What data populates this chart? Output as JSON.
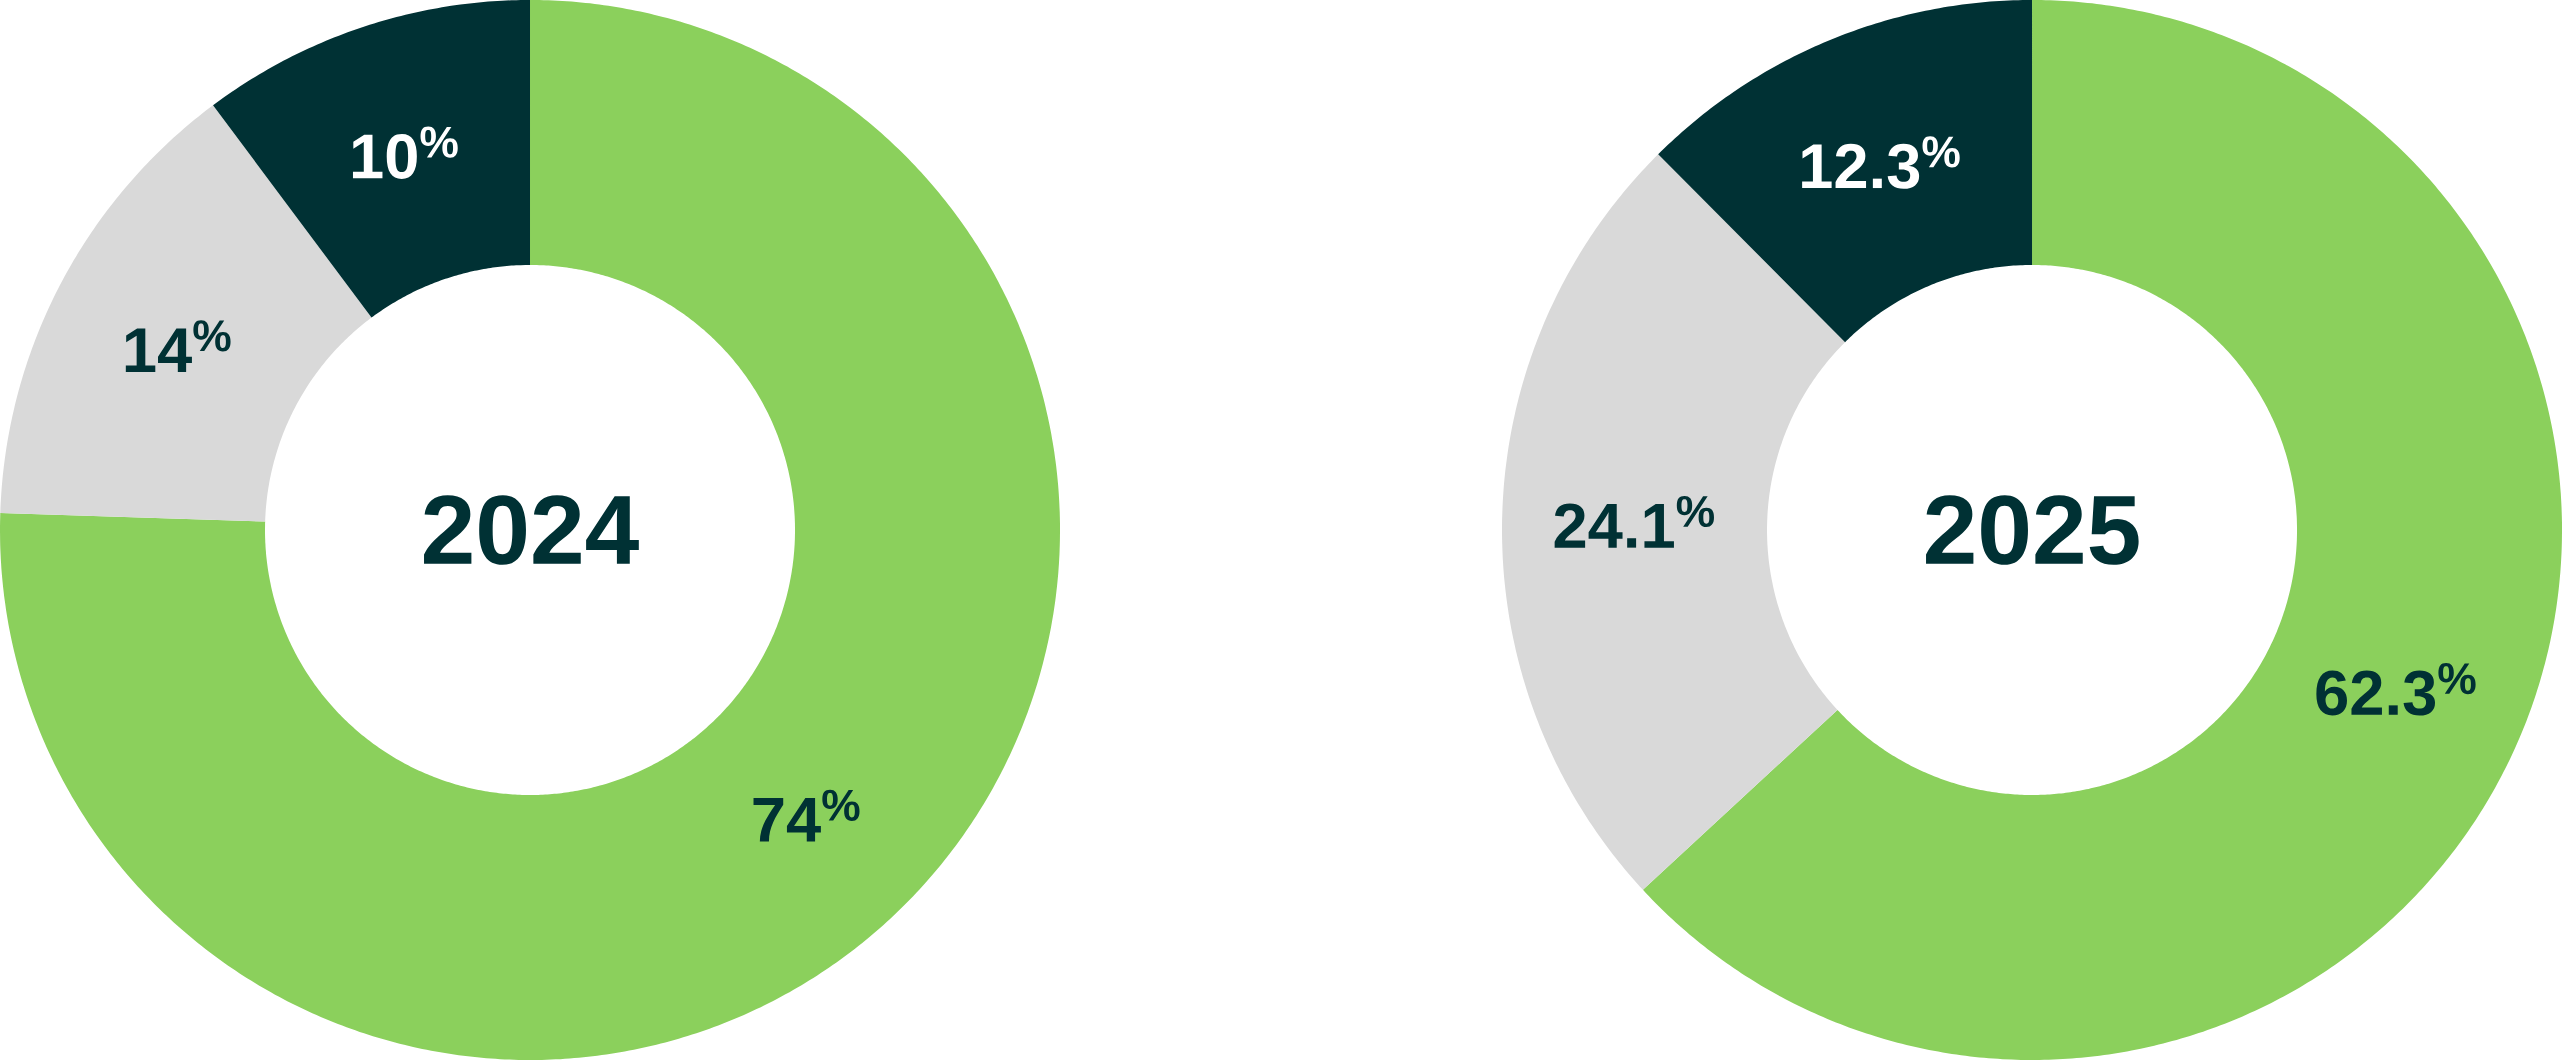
{
  "chart_data": [
    {
      "type": "donut",
      "title": "2024",
      "categories": [
        null,
        null,
        null
      ],
      "values": [
        74,
        14,
        10
      ],
      "colors": [
        "#8bd05c",
        "#d9d9d9",
        "#003134"
      ],
      "value_labels": [
        "74$^{%}$",
        "14$^{%}$",
        "10$^{%}$"
      ]
    },
    {
      "type": "donut",
      "title": "2025",
      "categories": [
        null,
        null,
        null
      ],
      "values": [
        62.3,
        24.1,
        12.3
      ],
      "colors": [
        "#8bd05c",
        "#d9d9d9",
        "#003134"
      ],
      "value_labels": [
        "62.3$^{%}$",
        "24.1$^{%}$",
        "12.3$^{%}$"
      ]
    }
  ]
}
